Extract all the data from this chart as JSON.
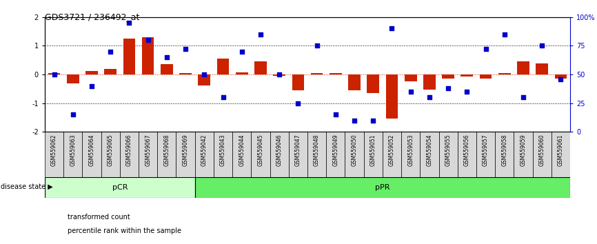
{
  "title": "GDS3721 / 236492_at",
  "samples": [
    "GSM559062",
    "GSM559063",
    "GSM559064",
    "GSM559065",
    "GSM559066",
    "GSM559067",
    "GSM559068",
    "GSM559069",
    "GSM559042",
    "GSM559043",
    "GSM559044",
    "GSM559045",
    "GSM559046",
    "GSM559047",
    "GSM559048",
    "GSM559049",
    "GSM559050",
    "GSM559051",
    "GSM559052",
    "GSM559053",
    "GSM559054",
    "GSM559055",
    "GSM559056",
    "GSM559057",
    "GSM559058",
    "GSM559059",
    "GSM559060",
    "GSM559061"
  ],
  "bar_values": [
    0.05,
    -0.32,
    0.12,
    0.18,
    1.25,
    1.3,
    0.35,
    0.05,
    -0.38,
    0.55,
    0.07,
    0.45,
    -0.05,
    -0.55,
    0.05,
    0.05,
    -0.55,
    -0.65,
    -1.55,
    -0.25,
    -0.52,
    -0.15,
    -0.08,
    -0.15,
    0.05,
    0.45,
    0.38,
    -0.15
  ],
  "dot_values": [
    50,
    15,
    40,
    70,
    95,
    80,
    65,
    72,
    50,
    30,
    70,
    85,
    50,
    25,
    75,
    15,
    10,
    10,
    90,
    35,
    30,
    38,
    35,
    72,
    85,
    30,
    75,
    46
  ],
  "pCR_count": 8,
  "pCR_color_light": "#ccffcc",
  "pPR_color": "#66ee66",
  "bar_color": "#cc2200",
  "dot_color": "#0000cc",
  "ylim": [
    -2,
    2
  ],
  "y2lim": [
    0,
    100
  ],
  "y2ticks": [
    0,
    25,
    50,
    75,
    100
  ],
  "y2ticklabels": [
    "0",
    "25",
    "50",
    "75",
    "100%"
  ],
  "yticks": [
    -2,
    -1,
    0,
    1,
    2
  ],
  "legend_bar": "transformed count",
  "legend_dot": "percentile rank within the sample",
  "disease_state_label": "disease state",
  "pCR_label": "pCR",
  "pPR_label": "pPR"
}
